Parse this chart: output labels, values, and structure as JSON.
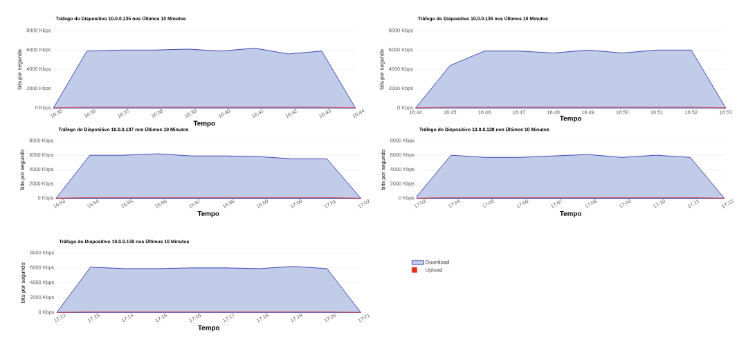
{
  "chart_data": [
    {
      "type": "area",
      "title": "Tráfego do Dispositivo 10.0.0.135 nos Últimos 10 Minutos",
      "xlabel": "Tempo",
      "ylabel": "bits por segundo",
      "categories": [
        "16:35",
        "16:36",
        "16:37",
        "16:38",
        "16:39",
        "16:40",
        "16:41",
        "16:42",
        "16:43",
        "16:44"
      ],
      "series": [
        {
          "color": "#c0cce8",
          "values": [
            0,
            5900,
            6000,
            6000,
            6100,
            5900,
            6200,
            5600,
            5900,
            0
          ]
        },
        {
          "type": "line",
          "color": "#e0301e",
          "values": [
            0,
            100,
            100,
            100,
            100,
            100,
            100,
            100,
            100,
            0
          ]
        }
      ],
      "ylim": [
        0,
        8000
      ],
      "yticks": [
        {
          "value": 0,
          "label": "0 Kbps"
        },
        {
          "value": 2000,
          "label": "2000 Kbps"
        },
        {
          "value": 4000,
          "label": "4000 Kbps"
        },
        {
          "value": 6000,
          "label": "6000 Kbps"
        },
        {
          "value": 8000,
          "label": "8000 Kbps"
        }
      ],
      "grid": "y",
      "legend": false
    },
    {
      "type": "area",
      "title": "Tráfego do Dispositivo 10.0.0.136 nos Últimos 10 Minutos",
      "xlabel": "Tempo",
      "ylabel": "bits por segundo",
      "categories": [
        "16:44",
        "16:45",
        "16:46",
        "16:47",
        "16:48",
        "16:49",
        "16:50",
        "16:51",
        "16:52",
        "16:53"
      ],
      "series": [
        {
          "color": "#c0cce8",
          "values": [
            0,
            4400,
            5900,
            5900,
            5700,
            6000,
            5700,
            6000,
            6000,
            0
          ]
        },
        {
          "type": "line",
          "color": "#e0301e",
          "values": [
            0,
            100,
            100,
            100,
            100,
            100,
            100,
            100,
            100,
            0
          ]
        }
      ],
      "ylim": [
        0,
        8000
      ],
      "yticks": [
        {
          "value": 0,
          "label": "0 Kbps"
        },
        {
          "value": 2000,
          "label": "2000 Kbps"
        },
        {
          "value": 4000,
          "label": "4000 Kbps"
        },
        {
          "value": 6000,
          "label": "6000 Kbps"
        },
        {
          "value": 8000,
          "label": "8000 Kbps"
        }
      ],
      "grid": "y",
      "legend": false
    },
    {
      "type": "area",
      "title": "Tráfego do Dispositivo 10.0.0.137 nos Últimos 10 Minutos",
      "xlabel": "Tempo",
      "ylabel": "bits por segundo",
      "categories": [
        "16:53",
        "16:54",
        "16:55",
        "16:56",
        "16:57",
        "16:58",
        "16:59",
        "17:00",
        "17:01",
        "17:02"
      ],
      "series": [
        {
          "color": "#c0cce8",
          "values": [
            0,
            6000,
            6000,
            6200,
            5900,
            5900,
            5800,
            5500,
            5500,
            0
          ]
        },
        {
          "type": "line",
          "color": "#e0301e",
          "values": [
            0,
            100,
            100,
            100,
            100,
            100,
            100,
            100,
            100,
            0
          ]
        }
      ],
      "ylim": [
        0,
        8000
      ],
      "yticks": [
        {
          "value": 0,
          "label": "0 Kbps"
        },
        {
          "value": 2000,
          "label": "2000 Kbps"
        },
        {
          "value": 4000,
          "label": "4000 Kbps"
        },
        {
          "value": 6000,
          "label": "6000 Kbps"
        },
        {
          "value": 8000,
          "label": "8000 Kbps"
        }
      ],
      "grid": "y",
      "legend": false
    },
    {
      "type": "area",
      "title": "Tráfego do Dispositivo 10.0.0.138 nos Últimos 10 Minutos",
      "xlabel": "Tempo",
      "ylabel": "bits por segundo",
      "categories": [
        "17:03",
        "17:04",
        "17:05",
        "17:06",
        "17:07",
        "17:08",
        "17:09",
        "17:10",
        "17:11",
        "17:12"
      ],
      "series": [
        {
          "color": "#c0cce8",
          "values": [
            300,
            6000,
            5700,
            5700,
            5900,
            6100,
            5700,
            6000,
            5700,
            0
          ]
        },
        {
          "type": "line",
          "color": "#e0301e",
          "values": [
            0,
            100,
            100,
            100,
            100,
            100,
            100,
            100,
            100,
            0
          ]
        }
      ],
      "ylim": [
        0,
        8000
      ],
      "yticks": [
        {
          "value": 0,
          "label": "0 Kbps"
        },
        {
          "value": 2000,
          "label": "2000 Kbps"
        },
        {
          "value": 4000,
          "label": "4000 Kbps"
        },
        {
          "value": 6000,
          "label": "6000 Kbps"
        },
        {
          "value": 8000,
          "label": "8000 Kbps"
        }
      ],
      "grid": "y",
      "legend": false
    },
    {
      "type": "area",
      "title": "Tráfego do Dispositivo 10.0.0.139 nos Últimos 10 Minutos",
      "xlabel": "Tempo",
      "ylabel": "bits por segundo",
      "categories": [
        "17:12",
        "17:13",
        "17:14",
        "17:15",
        "17:16",
        "17:17",
        "17:18",
        "17:19",
        "17:20",
        "17:21"
      ],
      "series": [
        {
          "name": "Download",
          "color": "#c0cce8",
          "values": [
            0,
            6100,
            5900,
            5900,
            6000,
            6000,
            5900,
            6200,
            5900,
            0
          ]
        },
        {
          "name": "Upload",
          "type": "line",
          "color": "#e0301e",
          "values": [
            0,
            100,
            100,
            100,
            100,
            100,
            100,
            100,
            100,
            0
          ]
        }
      ],
      "ylim": [
        0,
        8000
      ],
      "yticks": [
        {
          "value": 0,
          "label": "0 Kbps"
        },
        {
          "value": 2000,
          "label": "2000 Kbps"
        },
        {
          "value": 4000,
          "label": "4000 Kbps"
        },
        {
          "value": 6000,
          "label": "6000 Kbps"
        },
        {
          "value": 8000,
          "label": "8000 Kbps"
        }
      ],
      "grid": "y",
      "legend": "right"
    }
  ]
}
